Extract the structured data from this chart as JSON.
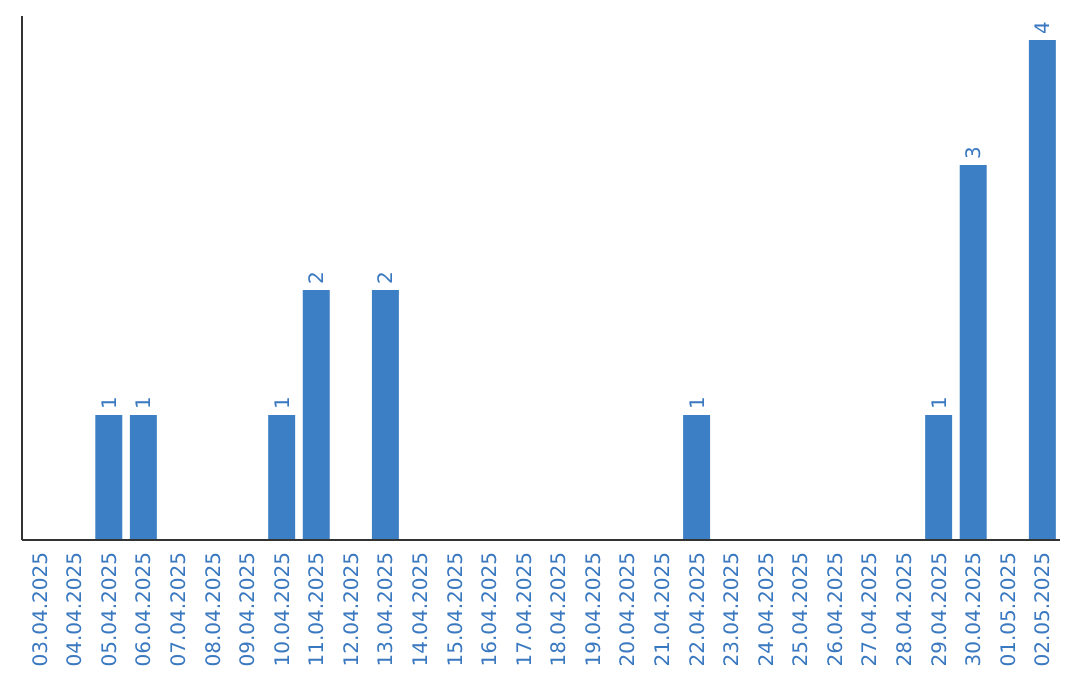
{
  "chart_data": {
    "type": "bar",
    "categories": [
      "03.04.2025",
      "04.04.2025",
      "05.04.2025",
      "06.04.2025",
      "07.04.2025",
      "08.04.2025",
      "09.04.2025",
      "10.04.2025",
      "11.04.2025",
      "12.04.2025",
      "13.04.2025",
      "14.04.2025",
      "15.04.2025",
      "16.04.2025",
      "17.04.2025",
      "18.04.2025",
      "19.04.2025",
      "20.04.2025",
      "21.04.2025",
      "22.04.2025",
      "23.04.2025",
      "24.04.2025",
      "25.04.2025",
      "26.04.2025",
      "27.04.2025",
      "28.04.2025",
      "29.04.2025",
      "30.04.2025",
      "01.05.2025",
      "02.05.2025"
    ],
    "values": [
      0,
      0,
      1,
      1,
      0,
      0,
      0,
      1,
      2,
      0,
      2,
      0,
      0,
      0,
      0,
      0,
      0,
      0,
      0,
      1,
      0,
      0,
      0,
      0,
      0,
      0,
      1,
      3,
      0,
      4
    ],
    "value_labels": [
      null,
      null,
      "1",
      "1",
      null,
      null,
      null,
      "1",
      "2",
      null,
      "2",
      null,
      null,
      null,
      null,
      null,
      null,
      null,
      null,
      "1",
      null,
      null,
      null,
      null,
      null,
      null,
      "1",
      "3",
      null,
      "4"
    ],
    "color": "#3d7fc4",
    "tick_labels": "x"
  }
}
